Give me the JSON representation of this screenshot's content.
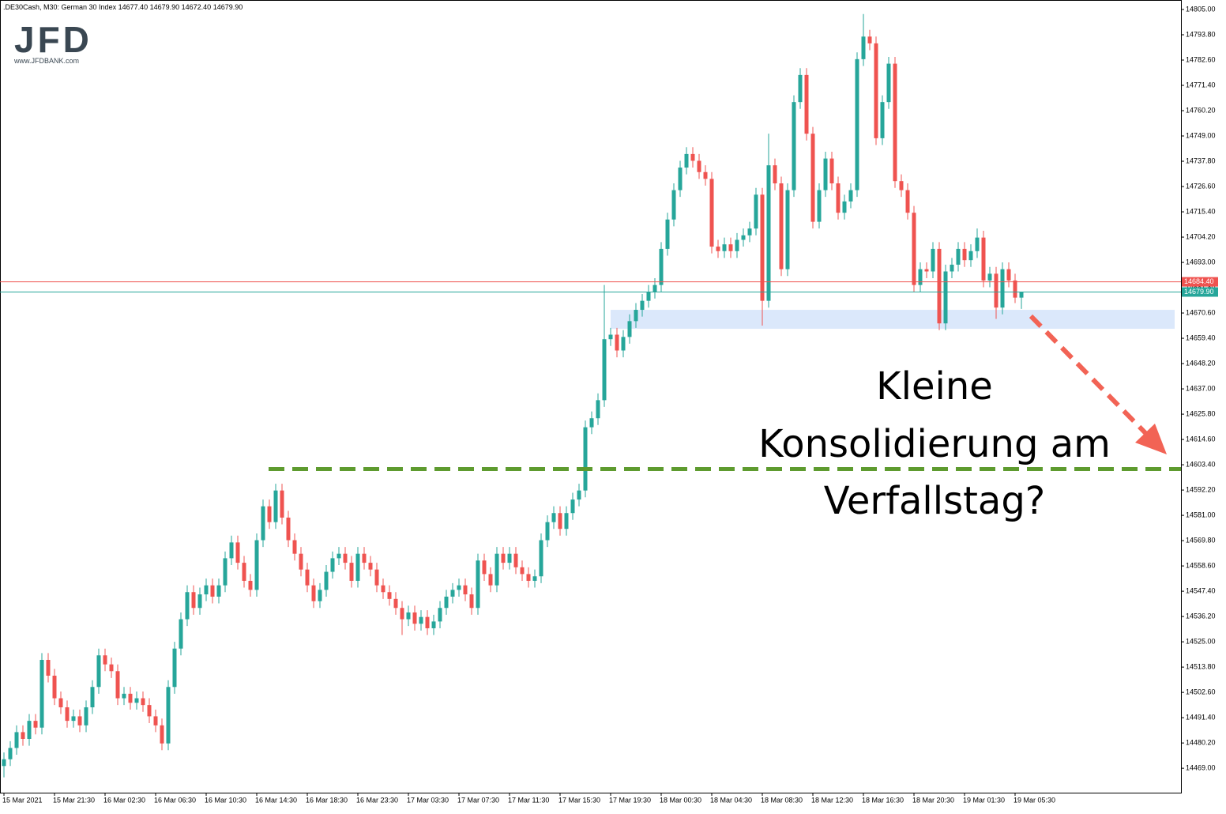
{
  "header": {
    "title": ".DE30Cash, M30:  German 30 Index  14677.40 14679.90 14672.40 14679.90"
  },
  "logo": {
    "brand": "JFD",
    "url": "www.JFDBANK.com"
  },
  "annotation": {
    "lines": [
      "Kleine",
      "Konsolidierung am",
      "Verfallstag?"
    ]
  },
  "chart_data": {
    "type": "candlestick",
    "categories": [
      "15 Mar 2021",
      null,
      null,
      null,
      null,
      null,
      null,
      null,
      "15 Mar 21:30",
      null,
      null,
      null,
      null,
      null,
      null,
      null,
      "16 Mar 02:30",
      null,
      null,
      null,
      null,
      null,
      null,
      null,
      "16 Mar 06:30",
      null,
      null,
      null,
      null,
      null,
      null,
      null,
      "16 Mar 10:30",
      null,
      null,
      null,
      null,
      null,
      null,
      null,
      "16 Mar 14:30",
      null,
      null,
      null,
      null,
      null,
      null,
      null,
      "16 Mar 18:30",
      null,
      null,
      null,
      null,
      null,
      null,
      null,
      "16 Mar 23:30",
      null,
      null,
      null,
      null,
      null,
      null,
      null,
      "17 Mar 03:30",
      null,
      null,
      null,
      null,
      null,
      null,
      null,
      "17 Mar 07:30",
      null,
      null,
      null,
      null,
      null,
      null,
      null,
      "17 Mar 11:30",
      null,
      null,
      null,
      null,
      null,
      null,
      null,
      "17 Mar 15:30",
      null,
      null,
      null,
      null,
      null,
      null,
      null,
      "17 Mar 19:30",
      null,
      null,
      null,
      null,
      null,
      null,
      null,
      "18 Mar 00:30",
      null,
      null,
      null,
      null,
      null,
      null,
      null,
      "18 Mar 04:30",
      null,
      null,
      null,
      null,
      null,
      null,
      null,
      "18 Mar 08:30",
      null,
      null,
      null,
      null,
      null,
      null,
      null,
      "18 Mar 12:30",
      null,
      null,
      null,
      null,
      null,
      null,
      null,
      "18 Mar 16:30",
      null,
      null,
      null,
      null,
      null,
      null,
      null,
      "18 Mar 20:30",
      null,
      null,
      null,
      null,
      null,
      null,
      null,
      "19 Mar 01:30",
      null,
      null,
      null,
      null,
      null,
      null,
      null,
      "19 Mar 05:30",
      null
    ],
    "open": [
      14470,
      14473,
      14478,
      14485,
      14482,
      14490,
      14487,
      14517,
      14510,
      14500,
      14496,
      14490,
      14492,
      14488,
      14496,
      14505,
      14519,
      14515,
      14512,
      14500,
      14502,
      14498,
      14500,
      14497,
      14492,
      14488,
      14480,
      14505,
      14522,
      14535,
      14547,
      14540,
      14546,
      14550,
      14545,
      14550,
      14562,
      14569,
      14560,
      14552,
      14548,
      14570,
      14585,
      14578,
      14592,
      14580,
      14570,
      14564,
      14557,
      14550,
      14543,
      14548,
      14556,
      14562,
      14564,
      14560,
      14552,
      14564,
      14560,
      14557,
      14550,
      14547,
      14544,
      14540,
      14535,
      14538,
      14533,
      14536,
      14531,
      14534,
      14540,
      14545,
      14548,
      14550,
      14546,
      14540,
      14561,
      14555,
      14550,
      14564,
      14560,
      14564,
      14558,
      14555,
      14552,
      14554,
      14570,
      14578,
      14582,
      14575,
      14582,
      14588,
      14592,
      14620,
      14624,
      14632,
      14659,
      14661,
      14654,
      14660,
      14667,
      14672,
      14676,
      14680,
      14683,
      14699,
      14712,
      14725,
      14735,
      14741,
      14738,
      14733,
      14730,
      14700,
      14698,
      14701,
      14698,
      14703,
      14705,
      14708,
      14723,
      14676,
      14736,
      14728,
      14690,
      14725,
      14764,
      14776,
      14750,
      14711,
      14725,
      14739,
      14728,
      14715,
      14720,
      14725,
      14783,
      14793,
      14790,
      14748,
      14764,
      14781,
      14729,
      14725,
      14715,
      14683,
      14690,
      14689,
      14699,
      14666,
      14689,
      14692,
      14699,
      14694,
      14698,
      14704,
      14685,
      14688,
      14673,
      14690,
      14685,
      14677.4
    ],
    "high": [
      14476,
      14481,
      14488,
      14488,
      14493,
      14493,
      14520,
      14520,
      14513,
      14503,
      14499,
      14495,
      14495,
      14499,
      14508,
      14522,
      14522,
      14518,
      14515,
      14505,
      14505,
      14503,
      14503,
      14500,
      14495,
      14491,
      14508,
      14525,
      14538,
      14550,
      14550,
      14549,
      14553,
      14553,
      14553,
      14565,
      14572,
      14572,
      14563,
      14555,
      14573,
      14588,
      14588,
      14595,
      14595,
      14583,
      14573,
      14567,
      14560,
      14553,
      14551,
      14559,
      14565,
      14567,
      14567,
      14563,
      14567,
      14567,
      14563,
      14560,
      14553,
      14550,
      14547,
      14543,
      14541,
      14541,
      14539,
      14539,
      14537,
      14543,
      14548,
      14551,
      14553,
      14553,
      14549,
      14564,
      14564,
      14558,
      14567,
      14567,
      14567,
      14567,
      14561,
      14558,
      14557,
      14573,
      14581,
      14585,
      14585,
      14585,
      14591,
      14595,
      14623,
      14627,
      14635,
      14683,
      14664,
      14664,
      14663,
      14670,
      14675,
      14679,
      14683,
      14686,
      14702,
      14715,
      14728,
      14738,
      14744,
      14744,
      14741,
      14736,
      14733,
      14703,
      14704,
      14704,
      14706,
      14708,
      14711,
      14726,
      14726,
      14750,
      14739,
      14731,
      14728,
      14767,
      14779,
      14779,
      14753,
      14728,
      14742,
      14742,
      14731,
      14723,
      14728,
      14786,
      14803,
      14796,
      14793,
      14767,
      14784,
      14784,
      14732,
      14728,
      14718,
      14693,
      14693,
      14702,
      14702,
      14692,
      14695,
      14702,
      14702,
      14701,
      14708,
      14707,
      14691,
      14691,
      14693,
      14693,
      14688,
      14679.9
    ],
    "low": [
      14465,
      14470,
      14475,
      14479,
      14479,
      14484,
      14484,
      14507,
      14497,
      14493,
      14487,
      14487,
      14485,
      14485,
      14493,
      14502,
      14512,
      14509,
      14497,
      14497,
      14495,
      14495,
      14494,
      14489,
      14485,
      14477,
      14477,
      14502,
      14519,
      14532,
      14537,
      14537,
      14543,
      14542,
      14542,
      14547,
      14559,
      14557,
      14549,
      14545,
      14545,
      14567,
      14575,
      14575,
      14577,
      14567,
      14561,
      14554,
      14547,
      14540,
      14540,
      14545,
      14553,
      14559,
      14557,
      14549,
      14549,
      14557,
      14554,
      14547,
      14544,
      14541,
      14537,
      14528,
      14532,
      14530,
      14530,
      14528,
      14528,
      14531,
      14537,
      14542,
      14545,
      14543,
      14537,
      14537,
      14552,
      14547,
      14547,
      14557,
      14557,
      14555,
      14552,
      14549,
      14549,
      14551,
      14567,
      14575,
      14572,
      14572,
      14579,
      14585,
      14589,
      14617,
      14621,
      14629,
      14656,
      14651,
      14651,
      14657,
      14664,
      14669,
      14673,
      14677,
      14680,
      14696,
      14709,
      14722,
      14732,
      14735,
      14730,
      14727,
      14697,
      14695,
      14695,
      14695,
      14695,
      14700,
      14702,
      14705,
      14665,
      14673,
      14725,
      14687,
      14687,
      14722,
      14761,
      14747,
      14708,
      14708,
      14722,
      14725,
      14712,
      14712,
      14717,
      14722,
      14780,
      14787,
      14745,
      14745,
      14761,
      14726,
      14722,
      14712,
      14680,
      14680,
      14686,
      14686,
      14663,
      14663,
      14686,
      14689,
      14691,
      14691,
      14695,
      14682,
      14682,
      14668,
      14670,
      14682,
      14675,
      14672.4
    ],
    "close": [
      14473,
      14478,
      14485,
      14482,
      14490,
      14487,
      14517,
      14510,
      14500,
      14496,
      14490,
      14492,
      14488,
      14496,
      14505,
      14519,
      14515,
      14512,
      14500,
      14502,
      14498,
      14500,
      14497,
      14492,
      14488,
      14480,
      14505,
      14522,
      14535,
      14547,
      14540,
      14546,
      14550,
      14545,
      14550,
      14562,
      14569,
      14560,
      14552,
      14548,
      14570,
      14585,
      14578,
      14592,
      14580,
      14570,
      14564,
      14557,
      14550,
      14543,
      14548,
      14556,
      14562,
      14564,
      14560,
      14552,
      14564,
      14560,
      14557,
      14550,
      14547,
      14544,
      14540,
      14535,
      14538,
      14533,
      14536,
      14531,
      14534,
      14540,
      14545,
      14548,
      14550,
      14546,
      14540,
      14561,
      14555,
      14550,
      14564,
      14560,
      14564,
      14558,
      14555,
      14552,
      14554,
      14570,
      14578,
      14582,
      14575,
      14582,
      14588,
      14592,
      14620,
      14624,
      14632,
      14659,
      14661,
      14654,
      14660,
      14667,
      14672,
      14676,
      14680,
      14683,
      14699,
      14712,
      14725,
      14735,
      14741,
      14738,
      14733,
      14730,
      14700,
      14698,
      14701,
      14698,
      14703,
      14705,
      14708,
      14723,
      14676,
      14736,
      14728,
      14690,
      14725,
      14764,
      14776,
      14750,
      14711,
      14725,
      14739,
      14728,
      14715,
      14720,
      14725,
      14783,
      14793,
      14790,
      14748,
      14764,
      14781,
      14729,
      14725,
      14715,
      14683,
      14690,
      14689,
      14699,
      14666,
      14689,
      14692,
      14699,
      14694,
      14698,
      14704,
      14685,
      14688,
      14673,
      14690,
      14685,
      14677.4,
      14679.9
    ],
    "up_color": "#26a69a",
    "down_color": "#ef5350",
    "ylim": [
      14458.2,
      14809.2
    ],
    "yticks": [
      {
        "value": 14469,
        "label": "14469.00"
      },
      {
        "value": 14480.2,
        "label": "14480.20"
      },
      {
        "value": 14491.4,
        "label": "14491.40"
      },
      {
        "value": 14502.6,
        "label": "14502.60"
      },
      {
        "value": 14513.8,
        "label": "14513.80"
      },
      {
        "value": 14525,
        "label": "14525.00"
      },
      {
        "value": 14536.2,
        "label": "14536.20"
      },
      {
        "value": 14547.4,
        "label": "14547.40"
      },
      {
        "value": 14558.6,
        "label": "14558.60"
      },
      {
        "value": 14569.8,
        "label": "14569.80"
      },
      {
        "value": 14581,
        "label": "14581.00"
      },
      {
        "value": 14592.2,
        "label": "14592.20"
      },
      {
        "value": 14603.4,
        "label": "14603.40"
      },
      {
        "value": 14614.6,
        "label": "14614.60"
      },
      {
        "value": 14625.8,
        "label": "14625.80"
      },
      {
        "value": 14637,
        "label": "14637.00"
      },
      {
        "value": 14648.2,
        "label": "14648.20"
      },
      {
        "value": 14659.4,
        "label": "14659.40"
      },
      {
        "value": 14670.6,
        "label": "14670.60"
      },
      {
        "value": 14681.8,
        "label": "14681.80"
      },
      {
        "value": 14693,
        "label": "14693.00"
      },
      {
        "value": 14704.2,
        "label": "14704.20"
      },
      {
        "value": 14715.4,
        "label": "14715.40"
      },
      {
        "value": 14726.6,
        "label": "14726.60"
      },
      {
        "value": 14737.8,
        "label": "14737.80"
      },
      {
        "value": 14749,
        "label": "14749.00"
      },
      {
        "value": 14760.2,
        "label": "14760.20"
      },
      {
        "value": 14771.4,
        "label": "14771.40"
      },
      {
        "value": 14782.6,
        "label": "14782.60"
      },
      {
        "value": 14793.8,
        "label": "14793.80"
      },
      {
        "value": 14805,
        "label": "14805.00"
      }
    ],
    "grid": false,
    "price_lines": [
      {
        "value": 14684.4,
        "label": "14684.40",
        "color": "#ef5350"
      },
      {
        "value": 14679.9,
        "label": "14679.90",
        "color": "#26a69a"
      }
    ],
    "zone": {
      "from": 14663.6,
      "to": 14672,
      "color": "#dbe8fb"
    },
    "level": {
      "value": 14601.5,
      "color": "#5e9b2f"
    }
  }
}
